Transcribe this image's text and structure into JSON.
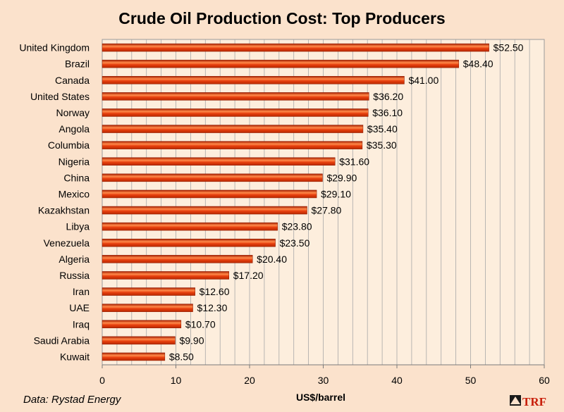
{
  "chart_data": {
    "type": "bar",
    "orientation": "horizontal",
    "title": "Crude Oil Production Cost: Top Producers",
    "xlabel": "US$/barrel",
    "ylabel": "",
    "xlim": [
      0,
      60
    ],
    "x_ticks": [
      "0",
      "10",
      "20",
      "30",
      "40",
      "50",
      "60"
    ],
    "grid": true,
    "legend": "none",
    "categories": [
      "United Kingdom",
      "Brazil",
      "Canada",
      "United States",
      "Norway",
      "Angola",
      "Columbia",
      "Nigeria",
      "China",
      "Mexico",
      "Kazakhstan",
      "Libya",
      "Venezuela",
      "Algeria",
      "Russia",
      "Iran",
      "UAE",
      "Iraq",
      "Saudi Arabia",
      "Kuwait"
    ],
    "values": [
      52.5,
      48.4,
      41.0,
      36.2,
      36.1,
      35.4,
      35.3,
      31.6,
      29.9,
      29.1,
      27.8,
      23.8,
      23.5,
      20.4,
      17.2,
      12.6,
      12.3,
      10.7,
      9.9,
      8.5
    ],
    "data_labels": [
      "$52.50",
      "$48.40",
      "$41.00",
      "$36.20",
      "$36.10",
      "$35.40",
      "$35.30",
      "$31.60",
      "$29.90",
      "$29.10",
      "$27.80",
      "$23.80",
      "$23.50",
      "$20.40",
      "$17.20",
      "$12.60",
      "$12.30",
      "$10.70",
      "$9.90",
      "$8.50"
    ],
    "bar_color": "#dd3a0c",
    "bar_highlight_color": "#ff8a4a",
    "plot_background": "#fdeedd",
    "page_background": "#fbe2cc"
  },
  "source": "Data: Rystad Energy",
  "logo": "TRF"
}
